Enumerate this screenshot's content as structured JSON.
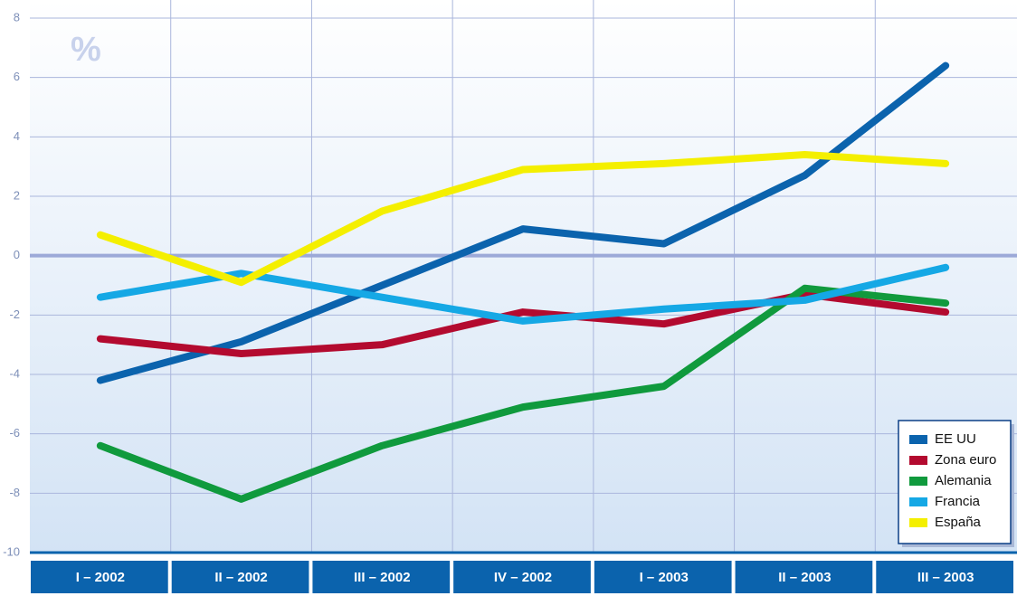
{
  "chart_data": {
    "type": "line",
    "unit_label": "%",
    "categories": [
      "I – 2002",
      "II – 2002",
      "III – 2002",
      "IV – 2002",
      "I – 2003",
      "II – 2003",
      "III – 2003"
    ],
    "series": [
      {
        "name": "EE UU",
        "color": "#0b63ad",
        "values": [
          -4.2,
          -2.9,
          -1.0,
          0.9,
          0.4,
          2.7,
          6.4
        ]
      },
      {
        "name": "Zona euro",
        "color": "#b30a2f",
        "values": [
          -2.8,
          -3.3,
          -3.0,
          -1.9,
          -2.3,
          -1.3,
          -1.9
        ]
      },
      {
        "name": "Alemania",
        "color": "#109a3d",
        "values": [
          -6.4,
          -8.2,
          -6.4,
          -5.1,
          -4.4,
          -1.1,
          -1.6
        ]
      },
      {
        "name": "Francia",
        "color": "#15a8e5",
        "values": [
          -1.4,
          -0.6,
          -1.4,
          -2.2,
          -1.8,
          -1.5,
          -0.4
        ]
      },
      {
        "name": "España",
        "color": "#f4ef00",
        "values": [
          0.7,
          -0.9,
          1.5,
          2.9,
          3.1,
          3.4,
          3.1
        ]
      }
    ],
    "ylim": [
      -10,
      8
    ],
    "yticks": [
      -10,
      -8,
      -6,
      -4,
      -2,
      0,
      2,
      4,
      6,
      8
    ],
    "grid": true,
    "legend": "lower right"
  }
}
